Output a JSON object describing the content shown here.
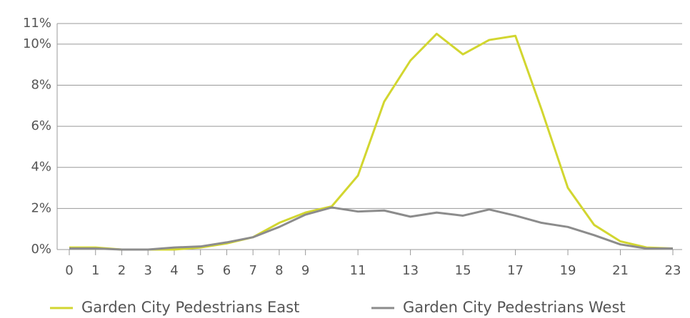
{
  "chart_data": {
    "type": "line",
    "x": [
      0,
      1,
      2,
      3,
      4,
      5,
      6,
      7,
      8,
      9,
      10,
      11,
      12,
      13,
      14,
      15,
      16,
      17,
      18,
      19,
      20,
      21,
      22,
      23
    ],
    "series": [
      {
        "name": "Garden City Pedestrians East",
        "color": "#d2d630",
        "values": [
          0.1,
          0.1,
          0,
          0,
          0,
          0.1,
          0.3,
          0.6,
          1.3,
          1.8,
          2.1,
          3.6,
          7.2,
          9.2,
          10.5,
          9.5,
          10.2,
          10.4,
          6.8,
          3,
          1.2,
          0.4,
          0.1,
          0.05
        ]
      },
      {
        "name": "Garden City Pedestrians West",
        "color": "#8c8c8c",
        "values": [
          0.05,
          0.05,
          0,
          0,
          0.1,
          0.15,
          0.35,
          0.6,
          1.1,
          1.7,
          2.05,
          1.85,
          1.9,
          1.6,
          1.8,
          1.65,
          1.95,
          1.65,
          1.3,
          1.1,
          0.7,
          0.25,
          0.05,
          0.05
        ]
      }
    ],
    "xlim": [
      0,
      23
    ],
    "xticks": [
      0,
      1,
      2,
      3,
      4,
      5,
      6,
      7,
      8,
      9,
      11,
      13,
      15,
      17,
      19,
      21,
      23
    ],
    "ylim": [
      0,
      11
    ],
    "yticks": [
      {
        "value": 0,
        "label": "0%"
      },
      {
        "value": 2,
        "label": "2%"
      },
      {
        "value": 4,
        "label": "4%"
      },
      {
        "value": 6,
        "label": "6%"
      },
      {
        "value": 8,
        "label": "8%"
      },
      {
        "value": 10,
        "label": "10%"
      },
      {
        "value": 11,
        "label": "11%"
      }
    ],
    "grid": true,
    "legend": "bottom"
  }
}
